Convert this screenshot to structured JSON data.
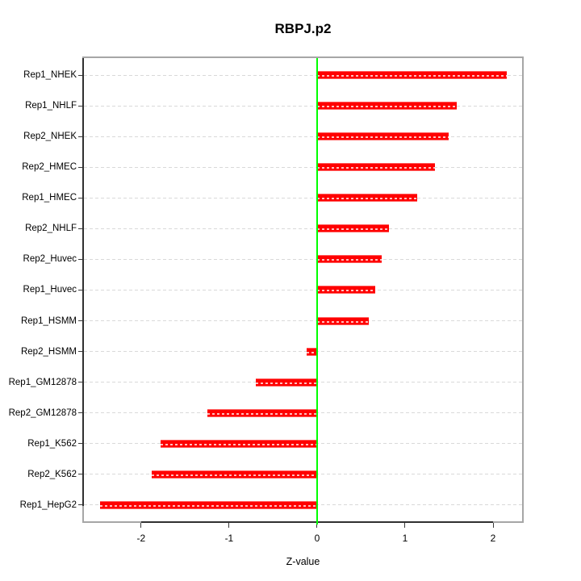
{
  "title": "RBPJ.p2",
  "chart_data": {
    "type": "bar",
    "orientation": "horizontal",
    "title": "RBPJ.p2",
    "xlabel": "Z-value",
    "categories": [
      "Rep1_NHEK",
      "Rep1_NHLF",
      "Rep2_NHEK",
      "Rep2_HMEC",
      "Rep1_HMEC",
      "Rep2_NHLF",
      "Rep2_Huvec",
      "Rep1_Huvec",
      "Rep1_HSMM",
      "Rep2_HSMM",
      "Rep1_GM12878",
      "Rep2_GM12878",
      "Rep1_K562",
      "Rep2_K562",
      "Rep1_HepG2"
    ],
    "values": [
      2.16,
      1.59,
      1.5,
      1.34,
      1.14,
      0.82,
      0.73,
      0.66,
      0.59,
      -0.12,
      -0.7,
      -1.25,
      -1.78,
      -1.88,
      -2.47
    ],
    "xlim": [
      -2.65,
      2.33
    ],
    "xticks": [
      -2,
      -1,
      0,
      1,
      2
    ],
    "xtick_labels": [
      "-2",
      "-1",
      "0",
      "1",
      "2"
    ],
    "legend": "none",
    "grid": "dashed-horizontal-per-category",
    "colors": {
      "bar": "#ff0000",
      "bar_edge": "#ff5a5a",
      "zero_line": "#00ff00",
      "grid_line": "#d9d9d9",
      "box_border": "#a6a6a6",
      "axis_line": "#303030",
      "text": "#000000",
      "background": "#ffffff"
    }
  }
}
